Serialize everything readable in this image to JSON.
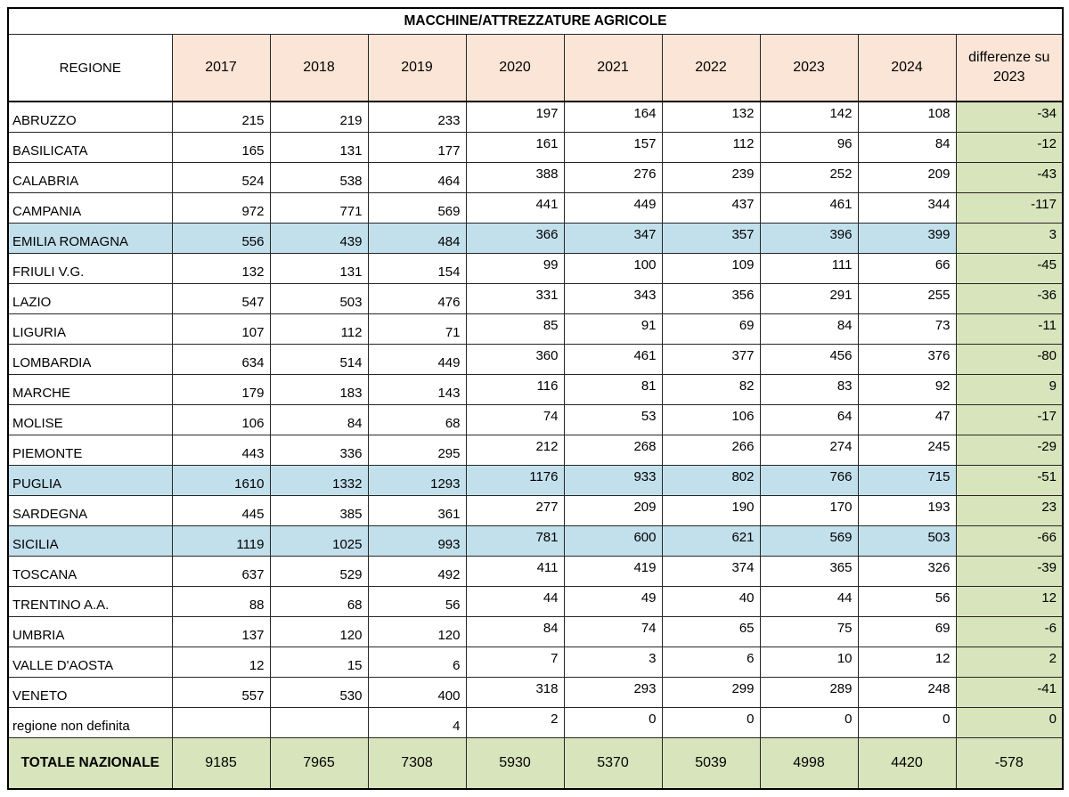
{
  "chart_data": {
    "type": "table",
    "title": "MACCHINE/ATTREZZATURE AGRICOLE",
    "region_header": "REGIONE",
    "year_headers": [
      "2017",
      "2018",
      "2019",
      "2020",
      "2021",
      "2022",
      "2023",
      "2024"
    ],
    "diff_header": "differenze su 2023",
    "rows": [
      {
        "region": "ABRUZZO",
        "values": [
          215,
          219,
          233,
          197,
          164,
          132,
          142,
          108
        ],
        "diff": -34,
        "highlight": false
      },
      {
        "region": "BASILICATA",
        "values": [
          165,
          131,
          177,
          161,
          157,
          112,
          96,
          84
        ],
        "diff": -12,
        "highlight": false
      },
      {
        "region": "CALABRIA",
        "values": [
          524,
          538,
          464,
          388,
          276,
          239,
          252,
          209
        ],
        "diff": -43,
        "highlight": false
      },
      {
        "region": "CAMPANIA",
        "values": [
          972,
          771,
          569,
          441,
          449,
          437,
          461,
          344
        ],
        "diff": -117,
        "highlight": false
      },
      {
        "region": "EMILIA ROMAGNA",
        "values": [
          556,
          439,
          484,
          366,
          347,
          357,
          396,
          399
        ],
        "diff": 3,
        "highlight": true
      },
      {
        "region": "FRIULI V.G.",
        "values": [
          132,
          131,
          154,
          99,
          100,
          109,
          111,
          66
        ],
        "diff": -45,
        "highlight": false
      },
      {
        "region": "LAZIO",
        "values": [
          547,
          503,
          476,
          331,
          343,
          356,
          291,
          255
        ],
        "diff": -36,
        "highlight": false
      },
      {
        "region": "LIGURIA",
        "values": [
          107,
          112,
          71,
          85,
          91,
          69,
          84,
          73
        ],
        "diff": -11,
        "highlight": false
      },
      {
        "region": "LOMBARDIA",
        "values": [
          634,
          514,
          449,
          360,
          461,
          377,
          456,
          376
        ],
        "diff": -80,
        "highlight": false
      },
      {
        "region": "MARCHE",
        "values": [
          179,
          183,
          143,
          116,
          81,
          82,
          83,
          92
        ],
        "diff": 9,
        "highlight": false
      },
      {
        "region": "MOLISE",
        "values": [
          106,
          84,
          68,
          74,
          53,
          106,
          64,
          47
        ],
        "diff": -17,
        "highlight": false
      },
      {
        "region": "PIEMONTE",
        "values": [
          443,
          336,
          295,
          212,
          268,
          266,
          274,
          245
        ],
        "diff": -29,
        "highlight": false
      },
      {
        "region": "PUGLIA",
        "values": [
          1610,
          1332,
          1293,
          1176,
          933,
          802,
          766,
          715
        ],
        "diff": -51,
        "highlight": true
      },
      {
        "region": "SARDEGNA",
        "values": [
          445,
          385,
          361,
          277,
          209,
          190,
          170,
          193
        ],
        "diff": 23,
        "highlight": false
      },
      {
        "region": "SICILIA",
        "values": [
          1119,
          1025,
          993,
          781,
          600,
          621,
          569,
          503
        ],
        "diff": -66,
        "highlight": true
      },
      {
        "region": "TOSCANA",
        "values": [
          637,
          529,
          492,
          411,
          419,
          374,
          365,
          326
        ],
        "diff": -39,
        "highlight": false
      },
      {
        "region": "TRENTINO A.A.",
        "values": [
          88,
          68,
          56,
          44,
          49,
          40,
          44,
          56
        ],
        "diff": 12,
        "highlight": false
      },
      {
        "region": "UMBRIA",
        "values": [
          137,
          120,
          120,
          84,
          74,
          65,
          75,
          69
        ],
        "diff": -6,
        "highlight": false
      },
      {
        "region": "VALLE D'AOSTA",
        "values": [
          12,
          15,
          6,
          7,
          3,
          6,
          10,
          12
        ],
        "diff": 2,
        "highlight": false
      },
      {
        "region": "VENETO",
        "values": [
          557,
          530,
          400,
          318,
          293,
          299,
          289,
          248
        ],
        "diff": -41,
        "highlight": false
      },
      {
        "region": "regione non definita",
        "values": [
          "",
          "",
          4,
          2,
          0,
          0,
          0,
          0
        ],
        "diff": 0,
        "highlight": false
      }
    ],
    "total": {
      "label": "TOTALE NAZIONALE",
      "values": [
        9185,
        7965,
        7308,
        5930,
        5370,
        5039,
        4998,
        4420
      ],
      "diff": -578
    }
  },
  "colors": {
    "header_fill": "#FBE5D6",
    "highlight_fill": "#C2E0EC",
    "diff_fill": "#D8E4BC",
    "total_fill": "#D8E4BC",
    "border": "#262626"
  }
}
